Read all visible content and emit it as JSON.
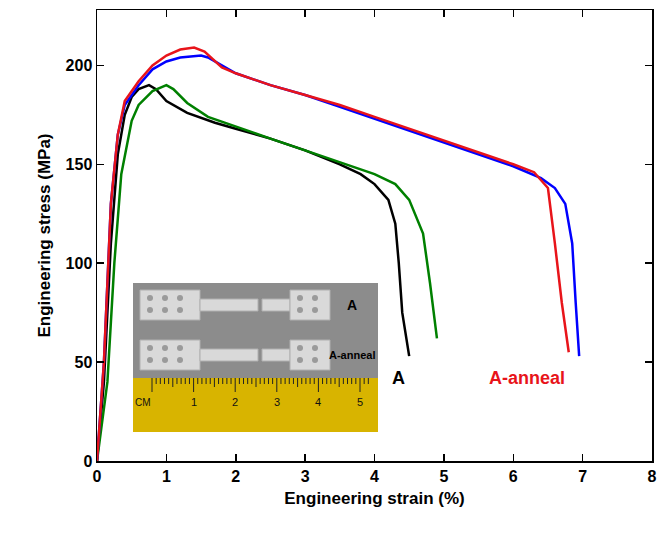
{
  "chart_data": {
    "type": "line",
    "x_label": "Engineering strain (%)",
    "y_label": "Engineering stress (MPa)",
    "xlim": [
      0,
      8
    ],
    "xticks": [
      0,
      1,
      2,
      3,
      4,
      5,
      6,
      7,
      8
    ],
    "ylim": [
      0,
      228
    ],
    "yticks": [
      0,
      50,
      100,
      150,
      200
    ],
    "grid": false,
    "series": [
      {
        "name": "A",
        "color": "#000000",
        "x": [
          0,
          0.1,
          0.2,
          0.3,
          0.4,
          0.5,
          0.6,
          0.75,
          0.85,
          1.0,
          1.3,
          1.7,
          2.0,
          2.5,
          3.0,
          3.5,
          3.8,
          4.0,
          4.2,
          4.3,
          4.35,
          4.4,
          4.5
        ],
        "values": [
          0,
          40,
          110,
          155,
          175,
          184,
          188,
          190,
          188,
          182,
          176,
          171,
          168,
          163,
          157,
          150,
          145,
          140,
          132,
          120,
          100,
          75,
          53
        ]
      },
      {
        "name": "A",
        "color": "#008000",
        "x": [
          0,
          0.15,
          0.25,
          0.35,
          0.5,
          0.6,
          0.8,
          1.0,
          1.1,
          1.3,
          1.6,
          2.0,
          2.5,
          3.0,
          3.5,
          4.0,
          4.3,
          4.5,
          4.7,
          4.8,
          4.9
        ],
        "values": [
          0,
          40,
          100,
          145,
          172,
          180,
          187,
          190,
          188,
          181,
          174,
          169,
          163,
          157,
          151,
          145,
          140,
          132,
          115,
          90,
          62
        ]
      },
      {
        "name": "A-anneal",
        "color": "#0000ff",
        "x": [
          0,
          0.1,
          0.2,
          0.3,
          0.4,
          0.6,
          0.8,
          1.0,
          1.2,
          1.5,
          1.6,
          1.8,
          2.0,
          2.5,
          3.0,
          3.5,
          4.0,
          4.5,
          5.0,
          5.5,
          6.0,
          6.4,
          6.6,
          6.75,
          6.85,
          6.9,
          6.95
        ],
        "values": [
          0,
          50,
          130,
          165,
          180,
          190,
          198,
          202,
          204,
          205,
          204,
          200,
          196,
          190,
          185,
          179,
          173,
          167,
          161,
          155,
          149,
          143,
          138,
          130,
          110,
          80,
          53
        ]
      },
      {
        "name": "A-anneal",
        "color": "#e8141a",
        "x": [
          0,
          0.1,
          0.2,
          0.3,
          0.4,
          0.6,
          0.8,
          1.0,
          1.2,
          1.4,
          1.55,
          1.8,
          2.0,
          2.5,
          3.0,
          3.5,
          4.0,
          4.5,
          5.0,
          5.5,
          6.0,
          6.3,
          6.5,
          6.6,
          6.7,
          6.8
        ],
        "values": [
          0,
          50,
          130,
          165,
          182,
          192,
          200,
          205,
          208,
          209,
          207,
          199,
          196,
          190,
          185,
          180,
          174,
          168,
          162,
          156,
          150,
          146,
          138,
          110,
          80,
          55
        ]
      }
    ],
    "annotations": [
      {
        "text": "A",
        "x": 4.35,
        "y": 42,
        "color": "#000000"
      },
      {
        "text": "A-anneal",
        "x": 6.2,
        "y": 42,
        "color": "#e8141a"
      }
    ],
    "inset": {
      "specimen_labels": [
        "A",
        "A-anneal"
      ],
      "ruler_unit": "CM",
      "ruler_ticks": [
        1,
        2,
        3,
        4,
        5
      ]
    }
  }
}
